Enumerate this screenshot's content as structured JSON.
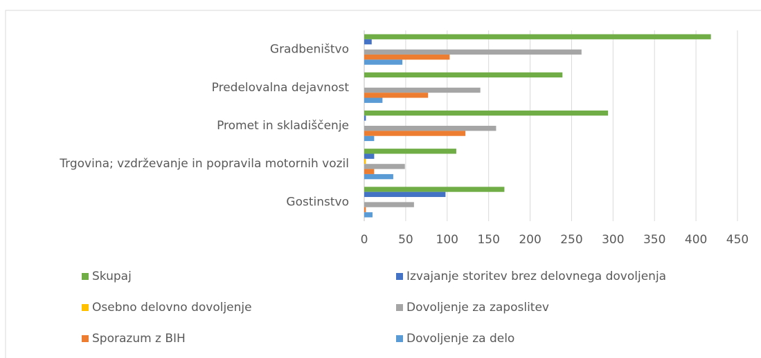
{
  "chart_data": {
    "type": "barh",
    "categories": [
      "Gradbeništvo",
      "Predelovalna dejavnost",
      "Promet in skladiščenje",
      "Trgovina; vzdrževanje in popravila motornih vozil",
      "Gostinstvo"
    ],
    "series": [
      {
        "name": "Skupaj",
        "color": "#70ad47",
        "values": [
          418,
          239,
          294,
          111,
          169
        ]
      },
      {
        "name": "Izvajanje storitev brez delovnega dovoljenja",
        "color": "#4472c4",
        "values": [
          9,
          0,
          2,
          12,
          98
        ]
      },
      {
        "name": "Osebno delovno dovoljenje",
        "color": "#ffc000",
        "values": [
          0,
          0,
          0,
          2,
          0
        ]
      },
      {
        "name": "Dovoljenje za zaposlitev",
        "color": "#a5a5a5",
        "values": [
          262,
          140,
          159,
          49,
          60
        ]
      },
      {
        "name": "Sporazum z BIH",
        "color": "#ed7d31",
        "values": [
          103,
          77,
          122,
          12,
          2
        ]
      },
      {
        "name": "Dovoljenje za delo",
        "color": "#5b9bd5",
        "values": [
          46,
          22,
          12,
          35,
          10
        ]
      }
    ],
    "xlim": [
      0,
      450
    ],
    "xticks": [
      0,
      50,
      100,
      150,
      200,
      250,
      300,
      350,
      400,
      450
    ],
    "grid": true
  }
}
